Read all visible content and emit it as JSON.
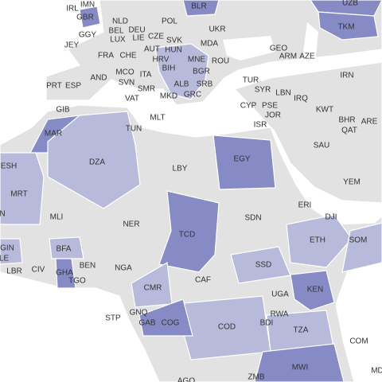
{
  "labels": [
    "BLR",
    "IRL",
    "IMN",
    "UZB",
    "GBR",
    "NLD",
    "POL",
    "UKR",
    "TKM",
    "DEU",
    "BEL",
    "GGY",
    "LUX",
    "CZE",
    "LIE",
    "SVK",
    "MDA",
    "JEY",
    "AUT",
    "HUN",
    "GEO",
    "FRA",
    "CHE",
    "ARM",
    "AZE",
    "MNE",
    "ROU",
    "HRV",
    "BIH",
    "BGR",
    "AND",
    "MCO",
    "ITA",
    "SRB",
    "TUR",
    "IRN",
    "PRT",
    "ESP",
    "SVN",
    "ALB",
    "SYR",
    "SMR",
    "LBN",
    "VAT",
    "MKD",
    "GRC",
    "IRQ",
    "KWT",
    "CYP",
    "PSE",
    "JOR",
    "GIB",
    "BHR",
    "ARE",
    "MLT",
    "ISR",
    "TUN",
    "QAT",
    "MAR",
    "EGY",
    "SAU",
    "DZA",
    "LBY",
    "ESH",
    "YEM",
    "MRT",
    "ERI",
    "SDN",
    "DJI",
    "MLI",
    "NER",
    "TCD",
    "ETH",
    "SOM",
    "BFA",
    "GIN",
    "LE",
    "BEN",
    "NGA",
    "SSD",
    "LBR",
    "CIV",
    "GHA",
    "TGO",
    "KEN",
    "CMR",
    "CAF",
    "UGA",
    "STP",
    "GNQ",
    "RWA",
    "GAB",
    "COG",
    "COD",
    "BDI",
    "TZA",
    "COM",
    "MWI",
    "ZMB",
    "AGO",
    "MD",
    "N"
  ]
}
